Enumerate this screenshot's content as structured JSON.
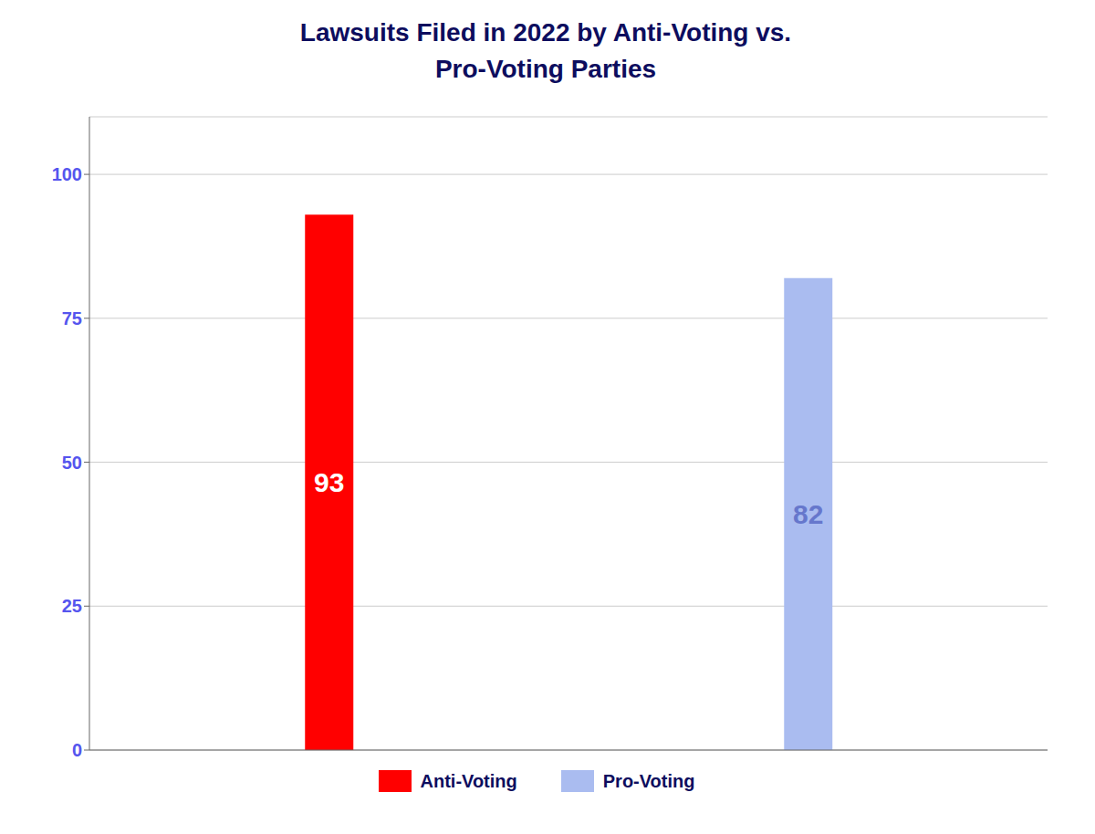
{
  "chart_data": {
    "type": "bar",
    "title": "Lawsuits Filed in 2022 by Anti-Voting vs.\nPro-Voting Parties",
    "categories": [
      "Anti-Voting",
      "Pro-Voting"
    ],
    "values": [
      93,
      82
    ],
    "colors": [
      "#FF0000",
      "#AABCF0"
    ],
    "ylim": [
      0,
      110
    ],
    "yticks": [
      0,
      25,
      50,
      75,
      100
    ],
    "grid": true,
    "legend": "bottom",
    "data_labels": true,
    "tick_labels": "y"
  }
}
